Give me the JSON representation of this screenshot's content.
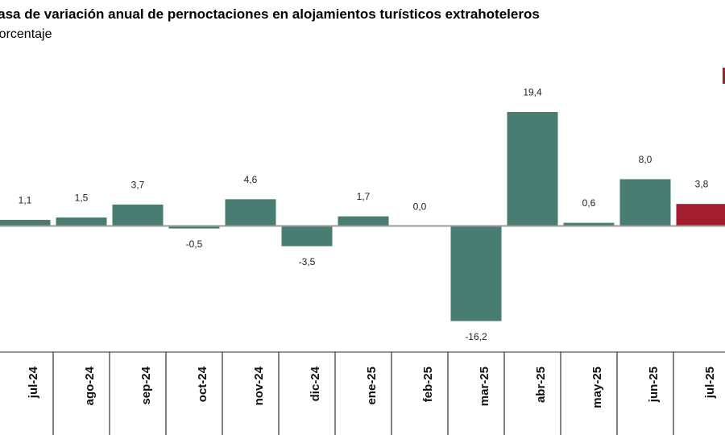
{
  "title": "Tasa de variación anual de pernoctaciones en alojamientos turísticos extrahoteleros",
  "subtitle": "Porcentaje",
  "colors": {
    "bar": "#4a7d72",
    "highlight": "#a21d2e",
    "axis": "#999999",
    "divider": "#333333",
    "text": "#222222"
  },
  "chart_data": {
    "type": "bar",
    "categories": [
      "jul-24",
      "ago-24",
      "sep-24",
      "oct-24",
      "nov-24",
      "dic-24",
      "ene-25",
      "feb-25",
      "mar-25",
      "abr-25",
      "may-25",
      "jun-25",
      "jul-25"
    ],
    "values": [
      1.1,
      1.5,
      3.7,
      -0.5,
      4.6,
      -3.5,
      1.7,
      0.0,
      -16.2,
      19.4,
      0.6,
      8.0,
      3.8
    ],
    "value_labels": [
      "1,1",
      "1,5",
      "3,7",
      "-0,5",
      "4,6",
      "-3,5",
      "1,7",
      "0,0",
      "-16,2",
      "19,4",
      "0,6",
      "8,0",
      "3,8"
    ],
    "highlight_index": 12,
    "title": "Tasa de variación anual de pernoctaciones en alojamientos turísticos extrahoteleros",
    "subtitle": "Porcentaje",
    "xlabel": "",
    "ylabel": "",
    "grid": false,
    "legend": "top-right"
  }
}
